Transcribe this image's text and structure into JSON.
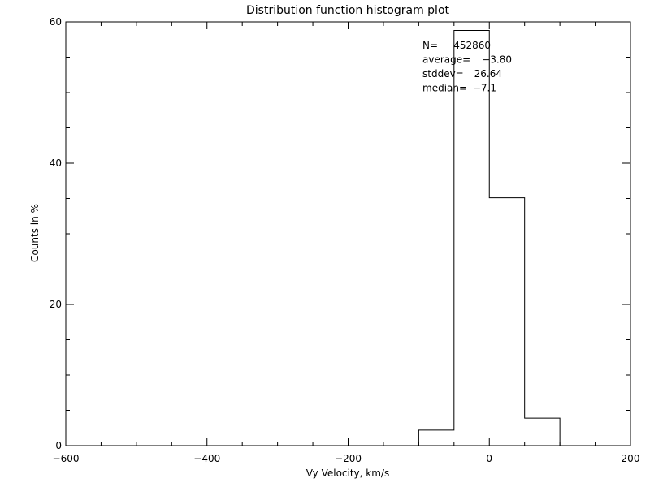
{
  "chart_data": {
    "type": "histogram",
    "title": "Distribution function histogram plot",
    "xlabel": "Vy Velocity, km/s",
    "ylabel": "Counts in %",
    "xlim": [
      -600,
      200
    ],
    "ylim": [
      0,
      60
    ],
    "x_ticks": [
      -600,
      -400,
      -200,
      0,
      200
    ],
    "x_tick_labels": [
      "−600",
      "−400",
      "−200",
      "0",
      "200"
    ],
    "x_minor_step": 50,
    "y_ticks": [
      0,
      20,
      40,
      60
    ],
    "y_tick_labels": [
      "0",
      "20",
      "40",
      "60"
    ],
    "y_minor_step": 5,
    "grid": false,
    "bin_edges": [
      -100,
      -50,
      0,
      50,
      100
    ],
    "values": [
      2.2,
      58.8,
      35.1,
      3.9
    ],
    "stats": [
      {
        "label": "N=",
        "value": "452860"
      },
      {
        "label": "average=",
        "value": "−3.80"
      },
      {
        "label": "stddev=",
        "value": "26.64"
      },
      {
        "label": "median=",
        "value": "−7.1"
      }
    ],
    "colors": {
      "line": "#000000",
      "background": "#ffffff"
    }
  }
}
